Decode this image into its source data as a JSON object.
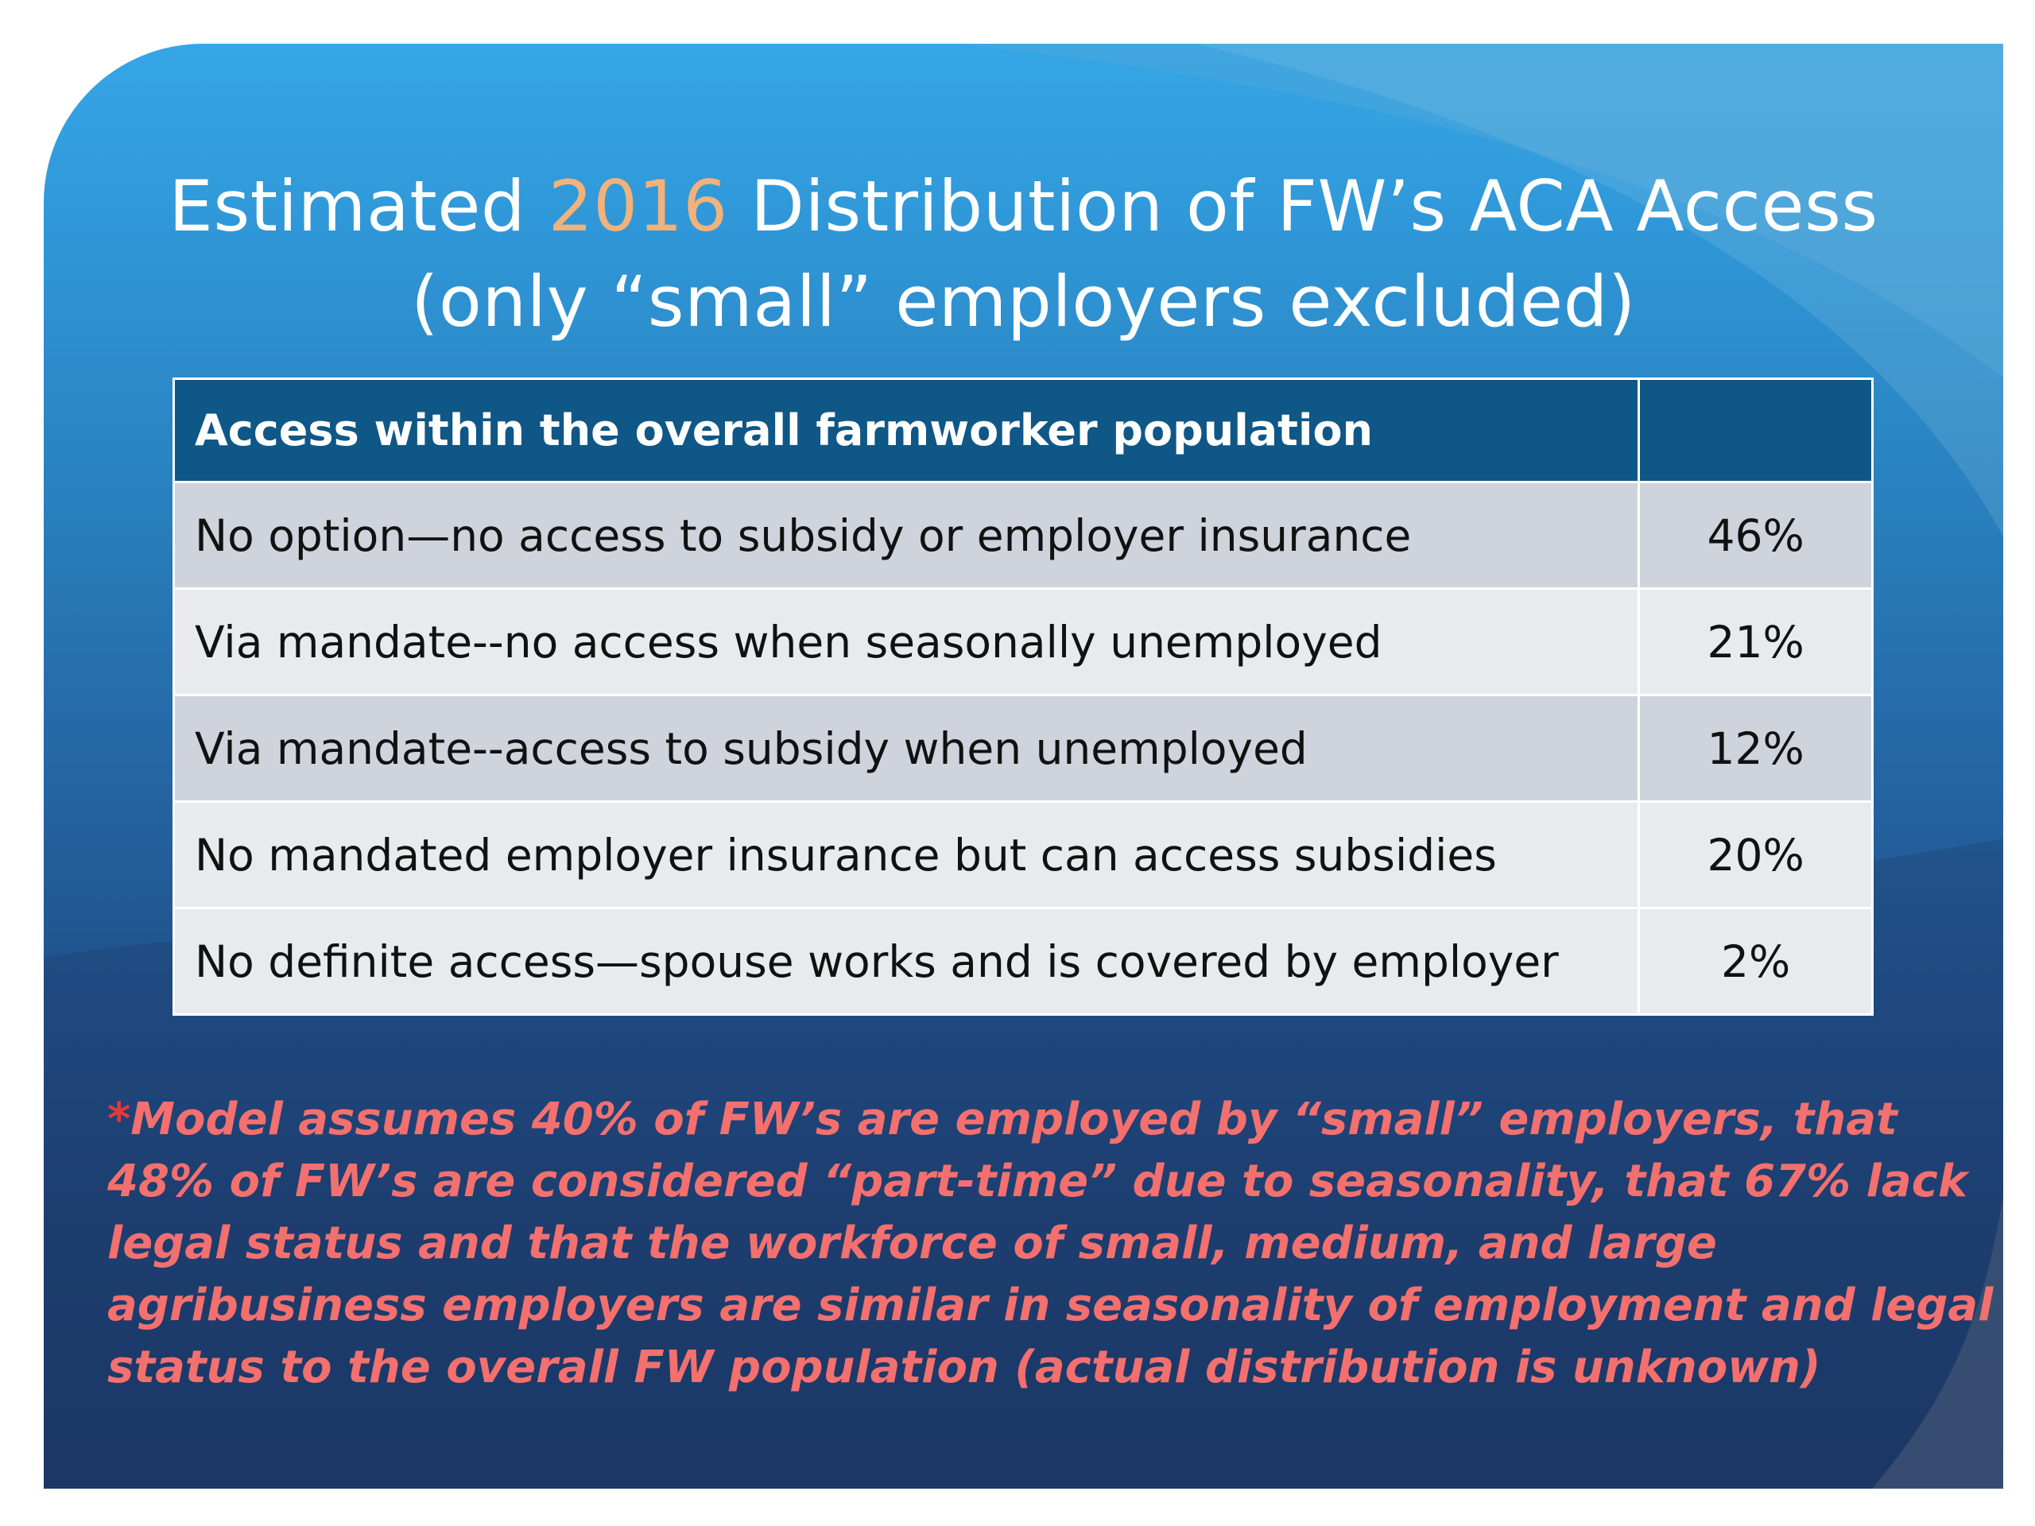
{
  "title": {
    "line1_before": "Estimated ",
    "line1_year": "2016",
    "line1_after": " Distribution of FW’s  ACA Access",
    "line2": "(only “small” employers excluded)"
  },
  "table": {
    "header": {
      "label": "Access within the overall farmworker population",
      "value": ""
    },
    "rows": [
      {
        "label": "No option—no access to subsidy or employer insurance",
        "value": "46%"
      },
      {
        "label": "Via mandate--no access when seasonally unemployed",
        "value": "21%"
      },
      {
        "label": "Via mandate--access to subsidy when unemployed",
        "value": "12%"
      },
      {
        "label": "No mandated employer insurance but can access subsidies",
        "value": "20%"
      },
      {
        "label": "No definite access—spouse works and is covered by employer",
        "value": "2%"
      }
    ]
  },
  "footnote": {
    "star": "*",
    "lines": [
      "Model assumes 40% of  FW’s are employed by “small” employers, that",
      "48% of FW’s are considered “part-time” due to seasonality, that 67% lack",
      "legal status and that the workforce of small, medium,  and large",
      "agribusiness employers are similar in seasonality of employment and legal",
      "status to the overall FW population (actual distribution is unknown)"
    ]
  },
  "colors": {
    "title_text": "#ffffff",
    "title_year": "#f2b27b",
    "table_header_bg": "#0f5787",
    "row_dark_bg": "#cfd4dc",
    "row_light_bg": "#e8eaee",
    "footnote_text": "#f3706e"
  }
}
